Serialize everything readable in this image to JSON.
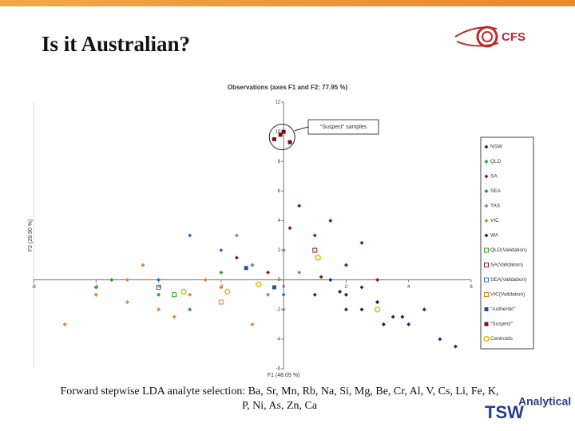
{
  "slide": {
    "title": "Is it Australian?",
    "caption": "Forward stepwise LDA analyte selection: Ba, Sr, Mn, Rb, Na, Si, Mg, Be, Cr, Al, V, Cs, Li, Fe, K, P, Ni, As, Zn, Ca"
  },
  "logos": {
    "top": "CFS",
    "bottom": "TSW",
    "bottom_sub": "Analytical"
  },
  "chart_data": {
    "type": "scatter",
    "title": "Observations (axes F1 and F2: 77.95 %)",
    "x_label": "F1 (48.05 %)",
    "y_label": "F2 (29.90 %)",
    "annotation": "\"Suspect\" samples",
    "xlim": [
      -8,
      6
    ],
    "xticks": [
      -8,
      -6,
      -4,
      -2,
      0,
      2,
      4,
      6
    ],
    "ylim": [
      -6,
      12
    ],
    "yticks": [
      -6,
      -4,
      -2,
      0,
      2,
      4,
      6,
      8,
      10,
      12
    ],
    "legend": "right",
    "series": [
      {
        "name": "NSW",
        "color": "#1f2a8a",
        "marker": "diamond",
        "x": [
          1,
          2,
          3,
          4,
          5,
          2.5,
          3.5,
          1.5,
          4.5,
          5.5
        ],
        "y": [
          -1,
          -2,
          -1.5,
          -3,
          -4,
          -0.5,
          -2.5,
          0,
          -2,
          -4.5
        ]
      },
      {
        "name": "QLD",
        "color": "#2ca02c",
        "marker": "diamond",
        "x": [
          -5.5,
          -4,
          -3,
          -2,
          -6
        ],
        "y": [
          0,
          -1,
          -2,
          0.5,
          -0.5
        ]
      },
      {
        "name": "SA",
        "color": "#8b1a1a",
        "marker": "diamond",
        "x": [
          -1,
          0,
          1,
          2,
          -0.5,
          1.5,
          0.5,
          2.5,
          -1.5,
          3,
          0.2,
          1.2
        ],
        "y": [
          1,
          2,
          3,
          1,
          0.5,
          4,
          5,
          2.5,
          1.5,
          0,
          3.5,
          0.2
        ]
      },
      {
        "name": "SEA",
        "color": "#2a6fb8",
        "marker": "diamond",
        "x": [
          -3,
          -2,
          -1,
          -4,
          0,
          -6
        ],
        "y": [
          3,
          2,
          1,
          0,
          -1,
          -1
        ]
      },
      {
        "name": "TAS",
        "color": "#8a8a8a",
        "marker": "diamond",
        "x": [
          -1,
          0,
          -0.5,
          0.5,
          -1.5,
          0
        ],
        "y": [
          1,
          2,
          -1,
          0.5,
          3,
          -2
        ]
      },
      {
        "name": "VIC",
        "color": "#e8822a",
        "marker": "diamond",
        "x": [
          -7,
          -6,
          -5,
          -4,
          -3,
          -2,
          -1,
          -4.5,
          -3.5,
          -2.5,
          -5
        ],
        "y": [
          -3,
          -1,
          0,
          -2,
          -1,
          -0.5,
          -3,
          1,
          -2.5,
          0,
          -1.5
        ]
      },
      {
        "name": "WA",
        "color": "#14206e",
        "marker": "diamond",
        "x": [
          2,
          3,
          2.5,
          3.8,
          1.8,
          3.2
        ],
        "y": [
          -1,
          -1.5,
          -2,
          -2.5,
          -0.8,
          -3
        ]
      },
      {
        "name": "QLD(Validation)",
        "color": "#2ca02c",
        "marker": "open",
        "x": [
          -3.5
        ],
        "y": [
          -1
        ]
      },
      {
        "name": "SA(Validation)",
        "color": "#8b1a1a",
        "marker": "open",
        "x": [
          1
        ],
        "y": [
          2
        ]
      },
      {
        "name": "SEA(Validation)",
        "color": "#2a6fb8",
        "marker": "open",
        "x": [
          -4
        ],
        "y": [
          -0.5
        ]
      },
      {
        "name": "VIC(Validation)",
        "color": "#e8822a",
        "marker": "open",
        "x": [
          -2
        ],
        "y": [
          -1.5
        ]
      },
      {
        "name": "\"Authentic\"",
        "color": "#2a4f9a",
        "marker": "square",
        "x": [
          -1.2,
          -0.3
        ],
        "y": [
          0.8,
          -0.5
        ]
      },
      {
        "name": "\"Suspect\"",
        "color": "#7a1010",
        "marker": "square",
        "x": [
          -0.3,
          0,
          0.2,
          -0.1
        ],
        "y": [
          9.5,
          10,
          9.3,
          9.8
        ]
      },
      {
        "name": "Centroids",
        "color": "#e6b800",
        "marker": "circle",
        "x": [
          -3.2,
          1.1,
          -1.8,
          3,
          -0.8
        ],
        "y": [
          -0.8,
          1.5,
          -0.8,
          -2,
          -0.3
        ]
      }
    ]
  }
}
